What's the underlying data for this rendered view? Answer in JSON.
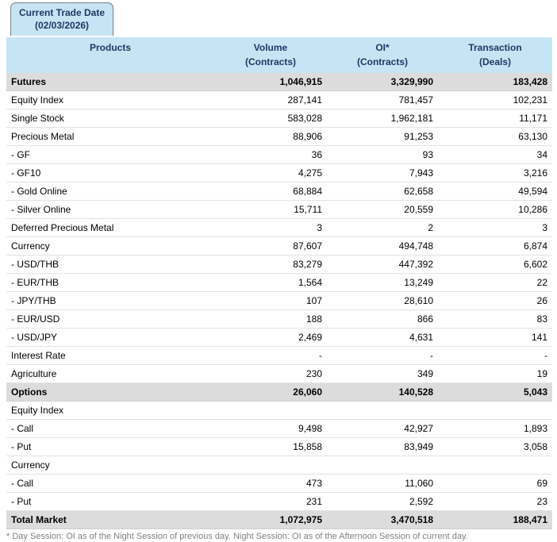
{
  "tab": {
    "line1": "Current Trade Date",
    "line2": "(02/03/2026)"
  },
  "header": {
    "products": "Products",
    "columns": [
      {
        "line1": "Volume",
        "line2": "(Contracts)"
      },
      {
        "line1": "OI*",
        "line2": "(Contracts)"
      },
      {
        "line1": "Transaction",
        "line2": "(Deals)"
      }
    ]
  },
  "rows": [
    {
      "label": "Futures",
      "volume": "1,046,915",
      "oi": "3,329,990",
      "transaction": "183,428",
      "style": "section"
    },
    {
      "label": "Equity Index",
      "volume": "287,141",
      "oi": "781,457",
      "transaction": "102,231",
      "style": "normal"
    },
    {
      "label": "Single Stock",
      "volume": "583,028",
      "oi": "1,962,181",
      "transaction": "11,171",
      "style": "normal"
    },
    {
      "label": "Precious Metal",
      "volume": "88,906",
      "oi": "91,253",
      "transaction": "63,130",
      "style": "normal"
    },
    {
      "label": "- GF",
      "volume": "36",
      "oi": "93",
      "transaction": "34",
      "style": "normal"
    },
    {
      "label": "- GF10",
      "volume": "4,275",
      "oi": "7,943",
      "transaction": "3,216",
      "style": "normal"
    },
    {
      "label": "- Gold Online",
      "volume": "68,884",
      "oi": "62,658",
      "transaction": "49,594",
      "style": "normal"
    },
    {
      "label": "- Silver Online",
      "volume": "15,711",
      "oi": "20,559",
      "transaction": "10,286",
      "style": "normal"
    },
    {
      "label": "Deferred Precious Metal",
      "volume": "3",
      "oi": "2",
      "transaction": "3",
      "style": "normal"
    },
    {
      "label": "Currency",
      "volume": "87,607",
      "oi": "494,748",
      "transaction": "6,874",
      "style": "normal"
    },
    {
      "label": "- USD/THB",
      "volume": "83,279",
      "oi": "447,392",
      "transaction": "6,602",
      "style": "normal"
    },
    {
      "label": "- EUR/THB",
      "volume": "1,564",
      "oi": "13,249",
      "transaction": "22",
      "style": "normal"
    },
    {
      "label": "- JPY/THB",
      "volume": "107",
      "oi": "28,610",
      "transaction": "26",
      "style": "normal"
    },
    {
      "label": "- EUR/USD",
      "volume": "188",
      "oi": "866",
      "transaction": "83",
      "style": "normal"
    },
    {
      "label": "- USD/JPY",
      "volume": "2,469",
      "oi": "4,631",
      "transaction": "141",
      "style": "normal"
    },
    {
      "label": "Interest Rate",
      "volume": "-",
      "oi": "-",
      "transaction": "-",
      "style": "normal"
    },
    {
      "label": "Agriculture",
      "volume": "230",
      "oi": "349",
      "transaction": "19",
      "style": "normal"
    },
    {
      "label": "Options",
      "volume": "26,060",
      "oi": "140,528",
      "transaction": "5,043",
      "style": "section"
    },
    {
      "label": "Equity Index",
      "volume": "",
      "oi": "",
      "transaction": "",
      "style": "normal"
    },
    {
      "label": "- Call",
      "volume": "9,498",
      "oi": "42,927",
      "transaction": "1,893",
      "style": "normal"
    },
    {
      "label": "- Put",
      "volume": "15,858",
      "oi": "83,949",
      "transaction": "3,058",
      "style": "normal"
    },
    {
      "label": "Currency",
      "volume": "",
      "oi": "",
      "transaction": "",
      "style": "normal"
    },
    {
      "label": "- Call",
      "volume": "473",
      "oi": "11,060",
      "transaction": "69",
      "style": "normal"
    },
    {
      "label": "- Put",
      "volume": "231",
      "oi": "2,592",
      "transaction": "23",
      "style": "normal"
    },
    {
      "label": "Total Market",
      "volume": "1,072,975",
      "oi": "3,470,518",
      "transaction": "188,471",
      "style": "section"
    }
  ],
  "footnote": "* Day Session: OI as of the Night Session of previous day. Night Session: OI as of the Afternoon Session of current day.",
  "colors": {
    "header_bg": "#c5e4f4",
    "header_text": "#1f3864",
    "section_bg": "#dcdcdc",
    "row_border": "#e2e2e2",
    "footnote_text": "#808080"
  }
}
